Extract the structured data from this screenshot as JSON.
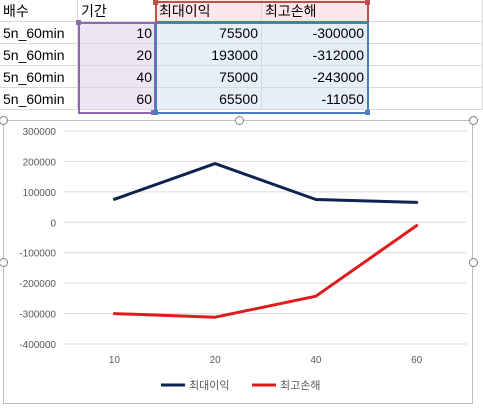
{
  "sheet": {
    "header": [
      "배수",
      "기간",
      "최대이익",
      "최고손해"
    ],
    "rows": [
      [
        "5n_60min",
        "10",
        "75500",
        "-300000"
      ],
      [
        "5n_60min",
        "20",
        "193000",
        "-312000"
      ],
      [
        "5n_60min",
        "40",
        "75000",
        "-243000"
      ],
      [
        "5n_60min",
        "60",
        "65500",
        "-11050"
      ]
    ]
  },
  "colors": {
    "series1": "#0f2250",
    "series2": "#e01b1b",
    "range_purple": "#8e67b3",
    "range_red": "#c0504d",
    "range_blue": "#4a7ebb"
  },
  "chart_data": {
    "type": "line",
    "categories": [
      "10",
      "20",
      "40",
      "60"
    ],
    "series": [
      {
        "name": "최대이익",
        "values": [
          75500,
          193000,
          75000,
          65500
        ]
      },
      {
        "name": "최고손해",
        "values": [
          -300000,
          -312000,
          -243000,
          -11050
        ]
      }
    ],
    "yticks": [
      "300000",
      "200000",
      "100000",
      "0",
      "-100000",
      "-200000",
      "-300000",
      "-400000"
    ],
    "ylim": [
      -400000,
      300000
    ],
    "grid": true,
    "legend": "bottom"
  }
}
